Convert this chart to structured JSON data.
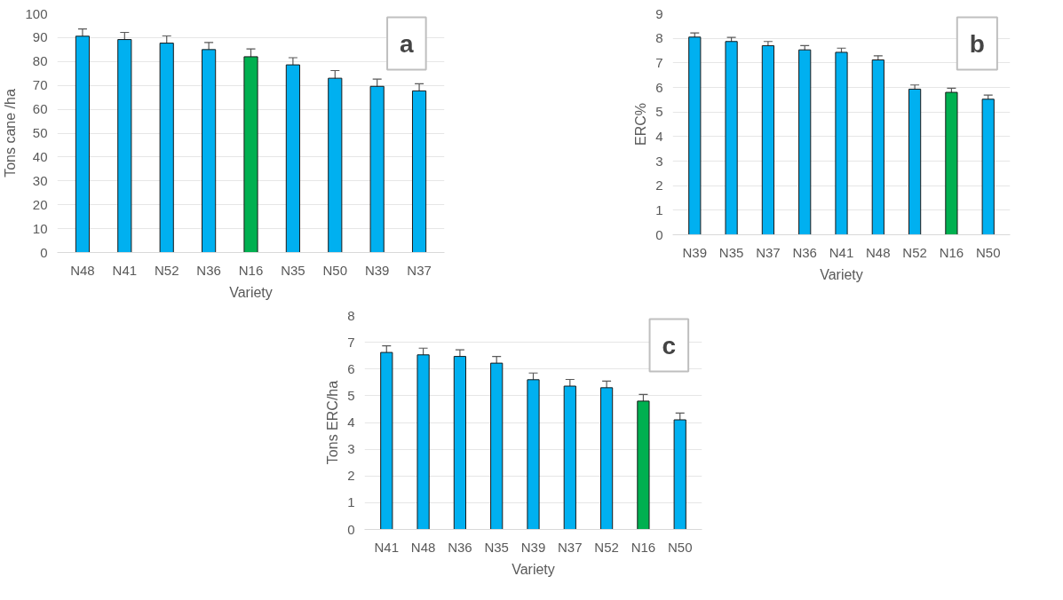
{
  "chart_data": [
    {
      "type": "bar",
      "xlabel": "Variety",
      "ylabel": "Tons cane /ha",
      "annotations": [
        "a"
      ],
      "categories": [
        "N48",
        "N41",
        "N52",
        "N36",
        "N16",
        "N35",
        "N50",
        "N39",
        "N37"
      ],
      "values": [
        90.6,
        89.2,
        87.7,
        85.0,
        82.0,
        78.6,
        73.0,
        69.6,
        67.7
      ],
      "colors": [
        "#00b0f0",
        "#00b0f0",
        "#00b0f0",
        "#00b0f0",
        "#00b050",
        "#00b0f0",
        "#00b0f0",
        "#00b0f0",
        "#00b0f0"
      ],
      "errors": [
        3,
        3,
        3,
        3,
        3.3,
        3,
        3.2,
        3,
        3
      ],
      "ylim": [
        0,
        100
      ],
      "yticks": [
        0,
        10,
        20,
        30,
        40,
        50,
        60,
        70,
        80,
        90,
        100
      ],
      "grid": "y"
    },
    {
      "type": "bar",
      "xlabel": "Variety",
      "ylabel": "ERC%",
      "annotations": [
        "b"
      ],
      "categories": [
        "N39",
        "N35",
        "N37",
        "N36",
        "N41",
        "N48",
        "N52",
        "N16",
        "N50"
      ],
      "values": [
        8.05,
        7.87,
        7.7,
        7.53,
        7.43,
        7.12,
        5.93,
        5.8,
        5.52
      ],
      "colors": [
        "#00b0f0",
        "#00b0f0",
        "#00b0f0",
        "#00b0f0",
        "#00b0f0",
        "#00b0f0",
        "#00b0f0",
        "#00b050",
        "#00b0f0"
      ],
      "errors": [
        0.17,
        0.17,
        0.17,
        0.17,
        0.17,
        0.17,
        0.17,
        0.17,
        0.17
      ],
      "ylim": [
        0,
        9
      ],
      "yticks": [
        0,
        1,
        2,
        3,
        4,
        5,
        6,
        7,
        8,
        9
      ],
      "grid": "y"
    },
    {
      "type": "bar",
      "xlabel": "Variety",
      "ylabel": "Tons ERC/ha",
      "annotations": [
        "c"
      ],
      "categories": [
        "N41",
        "N48",
        "N36",
        "N35",
        "N39",
        "N37",
        "N52",
        "N16",
        "N50"
      ],
      "values": [
        6.62,
        6.53,
        6.47,
        6.22,
        5.6,
        5.36,
        5.3,
        4.8,
        4.1
      ],
      "colors": [
        "#00b0f0",
        "#00b0f0",
        "#00b0f0",
        "#00b0f0",
        "#00b0f0",
        "#00b0f0",
        "#00b0f0",
        "#00b050",
        "#00b0f0"
      ],
      "errors": [
        0.25,
        0.25,
        0.25,
        0.25,
        0.25,
        0.25,
        0.25,
        0.25,
        0.25
      ],
      "ylim": [
        0,
        8
      ],
      "yticks": [
        0,
        1,
        2,
        3,
        4,
        5,
        6,
        7,
        8
      ],
      "grid": "y"
    }
  ]
}
